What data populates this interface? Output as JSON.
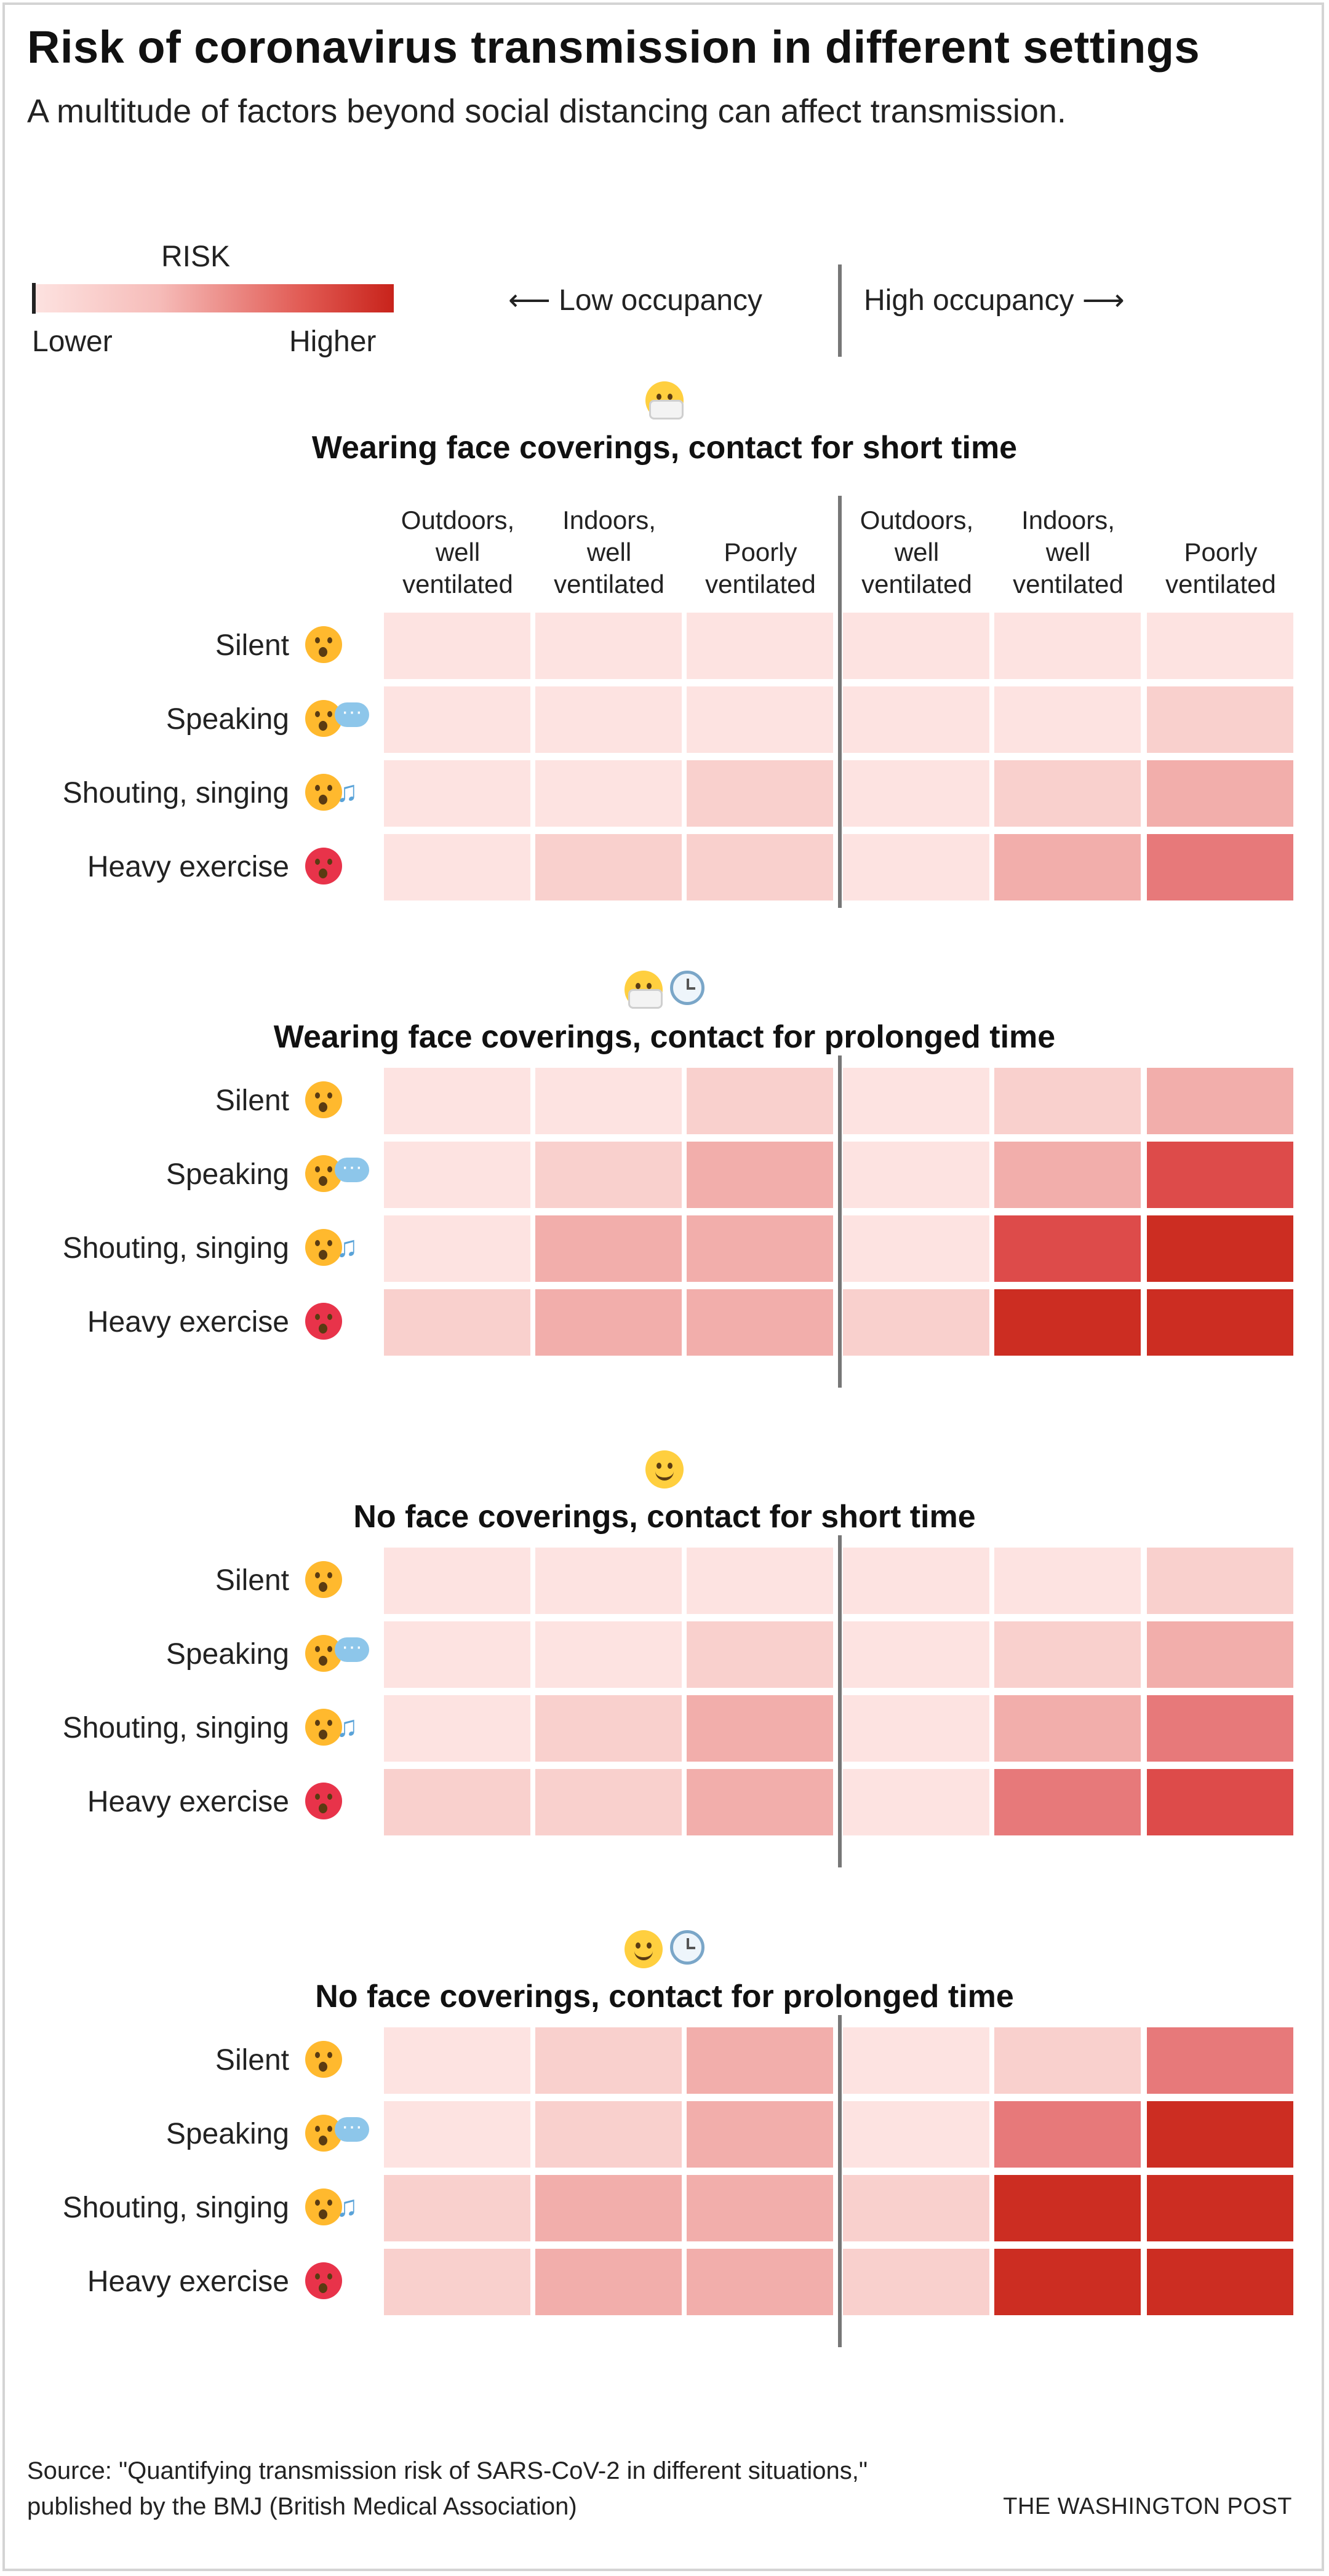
{
  "title": "Risk of coronavirus transmission in different settings",
  "subtitle": "A multitude of factors beyond social distancing can affect transmission.",
  "legend": {
    "title": "RISK",
    "low_label": "Lower",
    "high_label": "Higher"
  },
  "occupancy": {
    "low_label": "⟵ Low occupancy",
    "high_label": "High occupancy ⟶"
  },
  "columns": [
    {
      "line1": "Outdoors,",
      "line2": "well",
      "line3": "ventilated"
    },
    {
      "line1": "Indoors,",
      "line2": "well",
      "line3": "ventilated"
    },
    {
      "line1": "",
      "line2": "Poorly",
      "line3": "ventilated"
    },
    {
      "line1": "Outdoors,",
      "line2": "well",
      "line3": "ventilated"
    },
    {
      "line1": "Indoors,",
      "line2": "well",
      "line3": "ventilated"
    },
    {
      "line1": "",
      "line2": "Poorly",
      "line3": "ventilated"
    }
  ],
  "rows": [
    "Silent",
    "Speaking",
    "Shouting, singing",
    "Heavy exercise"
  ],
  "row_icons": [
    "quiet-face-icon",
    "talking-face-icon",
    "singing-face-icon",
    "exercise-face-icon"
  ],
  "colors": {
    "risk_1": "#fde3e1",
    "risk_2": "#f9d0cd",
    "risk_3": "#f2aeab",
    "risk_4": "#e7797a",
    "risk_5": "#dd4b4a",
    "risk_6": "#cc2d22"
  },
  "chart_data": {
    "type": "heatmap",
    "value_scale": "1 = lower risk, 6 = higher risk",
    "panels": [
      {
        "heading": "Wearing face coverings, contact for short time",
        "icons": [
          "masked-face-icon"
        ],
        "values": [
          [
            1,
            1,
            1,
            1,
            1,
            1
          ],
          [
            1,
            1,
            1,
            1,
            1,
            2
          ],
          [
            1,
            1,
            2,
            1,
            2,
            3
          ],
          [
            1,
            2,
            2,
            1,
            3,
            4
          ]
        ]
      },
      {
        "heading": "Wearing face coverings, contact for prolonged time",
        "icons": [
          "masked-face-icon",
          "clock-icon"
        ],
        "values": [
          [
            1,
            1,
            2,
            1,
            2,
            3
          ],
          [
            1,
            2,
            3,
            1,
            3,
            5
          ],
          [
            1,
            3,
            3,
            1,
            5,
            6
          ],
          [
            2,
            3,
            3,
            2,
            6,
            6
          ]
        ]
      },
      {
        "heading": "No face coverings, contact for short time",
        "icons": [
          "smiling-face-icon"
        ],
        "values": [
          [
            1,
            1,
            1,
            1,
            1,
            2
          ],
          [
            1,
            1,
            2,
            1,
            2,
            3
          ],
          [
            1,
            2,
            3,
            1,
            3,
            4
          ],
          [
            2,
            2,
            3,
            1,
            4,
            5
          ]
        ]
      },
      {
        "heading": "No face coverings, contact for prolonged time",
        "icons": [
          "smiling-face-icon",
          "clock-icon"
        ],
        "values": [
          [
            1,
            2,
            3,
            1,
            2,
            4
          ],
          [
            1,
            2,
            3,
            1,
            4,
            6
          ],
          [
            2,
            3,
            3,
            2,
            6,
            6
          ],
          [
            2,
            3,
            3,
            2,
            6,
            6
          ]
        ]
      }
    ]
  },
  "source": "Source: \"Quantifying transmission risk of SARS-CoV-2 in different situations,\" published by the BMJ (British Medical Association)",
  "credit": "THE WASHINGTON POST"
}
